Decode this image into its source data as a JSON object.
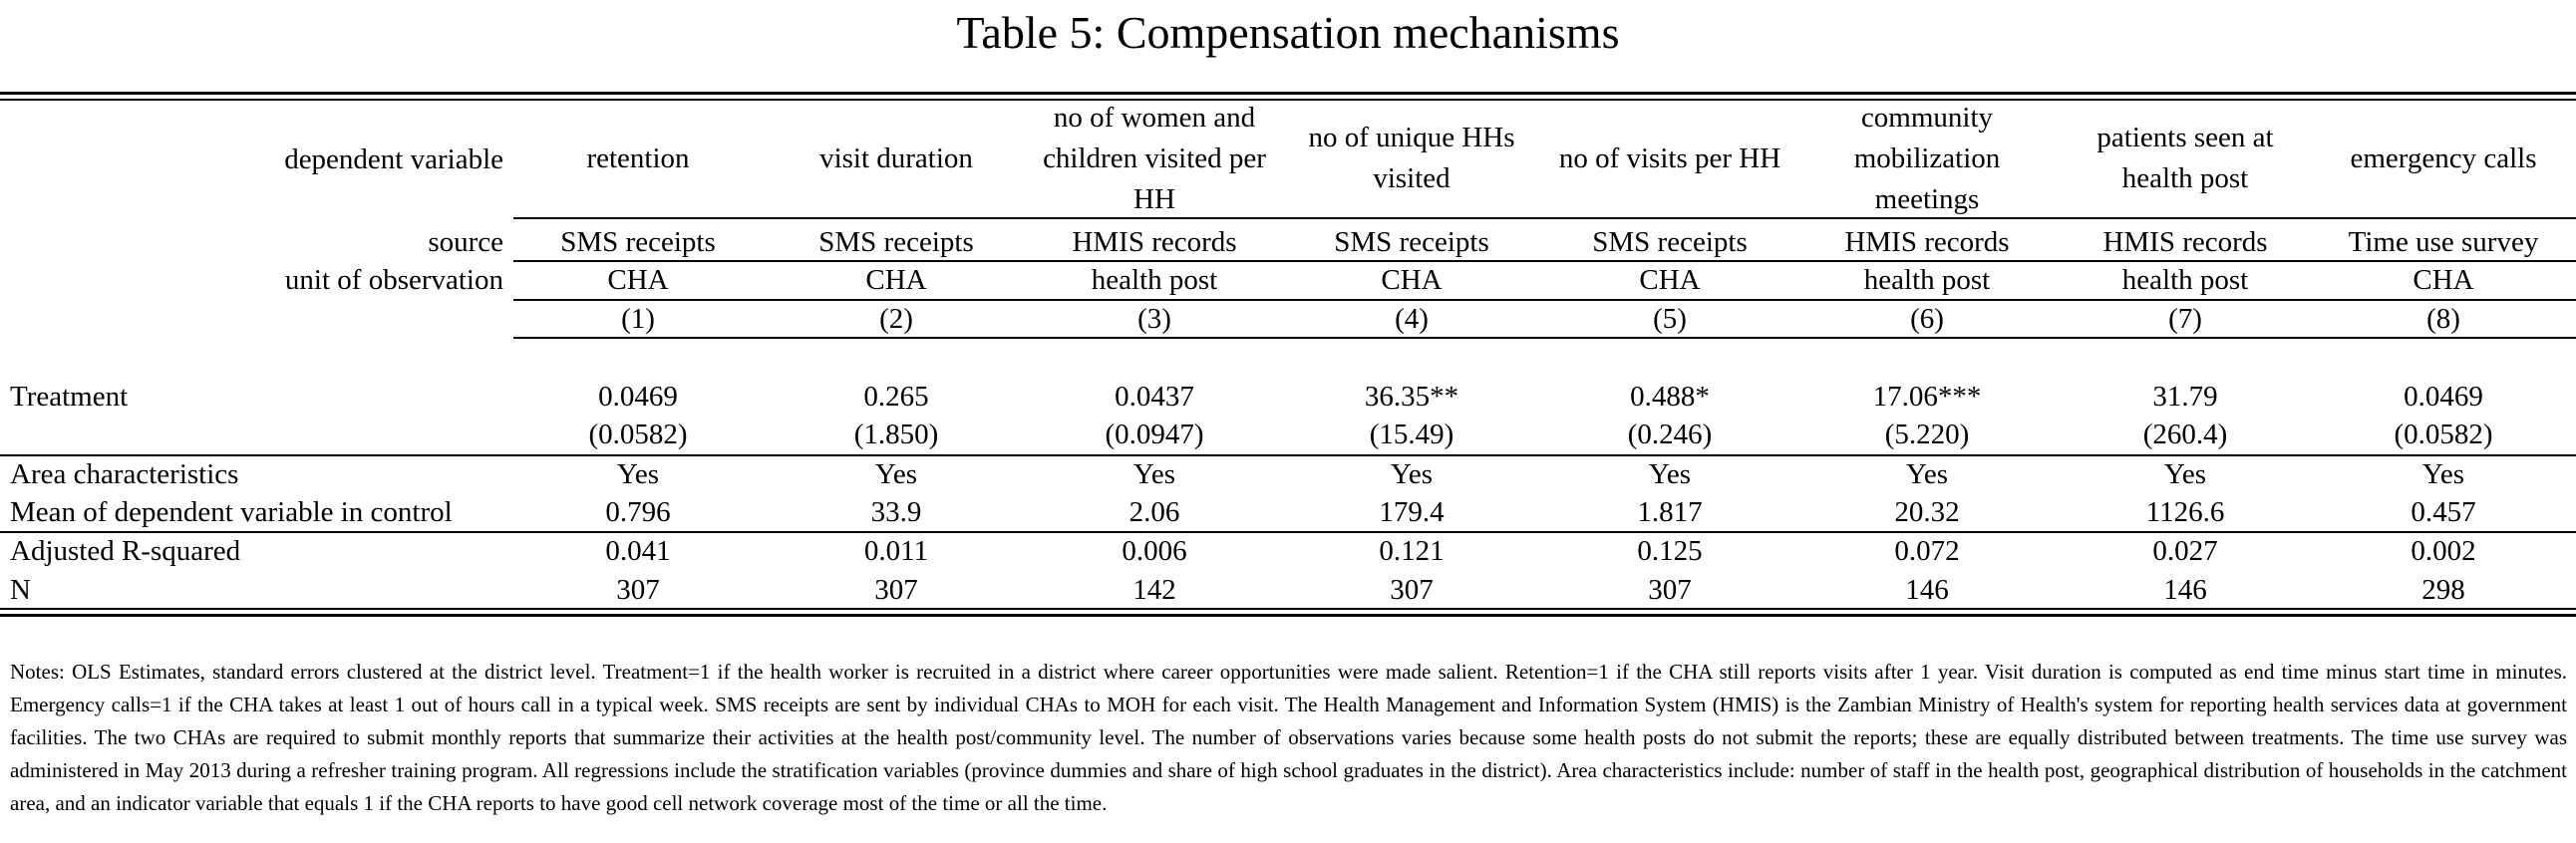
{
  "title": "Table 5: Compensation mechanisms",
  "header": {
    "dependent_variable_label": "dependent variable",
    "source_label": "source",
    "unit_label": "unit of observation",
    "columns": [
      {
        "dependent_variable": "retention",
        "source": "SMS receipts",
        "unit": "CHA",
        "number": "(1)"
      },
      {
        "dependent_variable": "visit duration",
        "source": "SMS receipts",
        "unit": "CHA",
        "number": "(2)"
      },
      {
        "dependent_variable": "no of women and children visited per HH",
        "source": "HMIS records",
        "unit": "health post",
        "number": "(3)"
      },
      {
        "dependent_variable": "no of unique HHs visited",
        "source": "SMS receipts",
        "unit": "CHA",
        "number": "(4)"
      },
      {
        "dependent_variable": "no of visits per HH",
        "source": "SMS receipts",
        "unit": "CHA",
        "number": "(5)"
      },
      {
        "dependent_variable": "community mobilization meetings",
        "source": "HMIS records",
        "unit": "health post",
        "number": "(6)"
      },
      {
        "dependent_variable": "patients seen at health post",
        "source": "HMIS records",
        "unit": "health post",
        "number": "(7)"
      },
      {
        "dependent_variable": "emergency calls",
        "source": "Time use survey",
        "unit": "CHA",
        "number": "(8)"
      }
    ]
  },
  "rows": {
    "treatment": {
      "label": "Treatment",
      "values": [
        "0.0469",
        "0.265",
        "0.0437",
        "36.35**",
        "0.488*",
        "17.06***",
        "31.79",
        "0.0469"
      ]
    },
    "treatment_se": {
      "values": [
        "(0.0582)",
        "(1.850)",
        "(0.0947)",
        "(15.49)",
        "(0.246)",
        "(5.220)",
        "(260.4)",
        "(0.0582)"
      ]
    },
    "area": {
      "label": "Area characteristics",
      "values": [
        "Yes",
        "Yes",
        "Yes",
        "Yes",
        "Yes",
        "Yes",
        "Yes",
        "Yes"
      ]
    },
    "mean_control": {
      "label": "Mean of dependent variable in control",
      "values": [
        "0.796",
        "33.9",
        "2.06",
        "179.4",
        "1.817",
        "20.32",
        "1126.6",
        "0.457"
      ]
    },
    "r2": {
      "label": "Adjusted R-squared",
      "values": [
        "0.041",
        "0.011",
        "0.006",
        "0.121",
        "0.125",
        "0.072",
        "0.027",
        "0.002"
      ]
    },
    "n": {
      "label": "N",
      "values": [
        "307",
        "307",
        "142",
        "307",
        "307",
        "146",
        "146",
        "298"
      ]
    }
  },
  "notes": "Notes: OLS Estimates, standard errors clustered at the district level. Treatment=1 if the health worker is recruited in a district where career opportunities were made salient. Retention=1 if the CHA still reports visits after 1 year. Visit duration is computed as end time minus start time in minutes. Emergency calls=1 if the CHA takes at least 1 out of hours call in a typical week. SMS receipts are sent by individual CHAs to MOH for each visit. The Health Management and Information System (HMIS) is the Zambian Ministry of Health's system for reporting health services data at government facilities. The two CHAs are required to submit monthly reports that summarize their activities at the health post/community level. The number of observations varies because some health posts do not submit the reports; these are equally distributed between treatments. The time use survey was administered in May 2013 during a refresher training program. All regressions include the stratification variables (province dummies and share of high school graduates in the district). Area characteristics include: number of staff in the health post, geographical distribution of households in the catchment area, and an indicator variable that equals 1 if the CHA reports to have good cell network coverage most of the time or all the time."
}
